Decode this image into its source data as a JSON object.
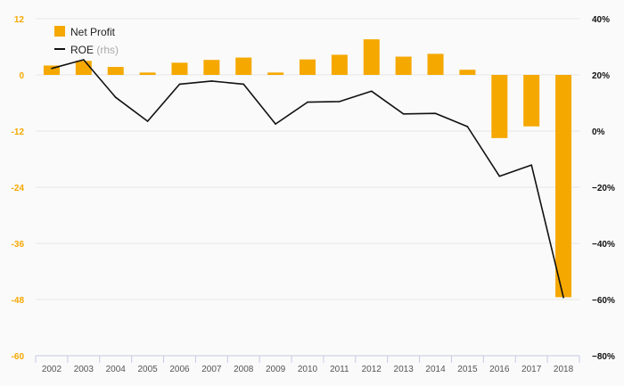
{
  "colors": {
    "bar": "#f5a800",
    "line": "#111111",
    "grid": "#e6e6e6",
    "axis": "#c6cbe0"
  },
  "chart_data": {
    "type": "bar",
    "categories": [
      "2002",
      "2003",
      "2004",
      "2005",
      "2006",
      "2007",
      "2008",
      "2009",
      "2010",
      "2011",
      "2012",
      "2013",
      "2014",
      "2015",
      "2016",
      "2017",
      "2018"
    ],
    "series": [
      {
        "name": "Net Profit",
        "type": "bar",
        "axis": "left",
        "values": [
          2.0,
          3.0,
          1.7,
          0.5,
          2.6,
          3.2,
          3.7,
          0.5,
          3.3,
          4.3,
          7.6,
          3.9,
          4.5,
          1.1,
          -13.5,
          -11.0,
          -47.5
        ]
      },
      {
        "name": "ROE",
        "legend_suffix": "(rhs)",
        "type": "line",
        "axis": "right",
        "values": [
          22.3,
          25.4,
          12.0,
          3.5,
          16.7,
          17.8,
          16.7,
          2.5,
          10.3,
          10.5,
          14.2,
          6.1,
          6.3,
          1.6,
          -16.1,
          -12.1,
          -59.3
        ]
      }
    ],
    "y_left": {
      "ticks": [
        "12",
        "0",
        "-12",
        "-24",
        "-36",
        "-48",
        "-60"
      ],
      "range": [
        -60,
        12
      ]
    },
    "y_right": {
      "ticks": [
        "40%",
        "20%",
        "0%",
        "−20%",
        "−40%",
        "−60%",
        "−80%"
      ],
      "range": [
        -80,
        40
      ]
    },
    "grid": true,
    "legend": {
      "position": "top-left"
    }
  }
}
